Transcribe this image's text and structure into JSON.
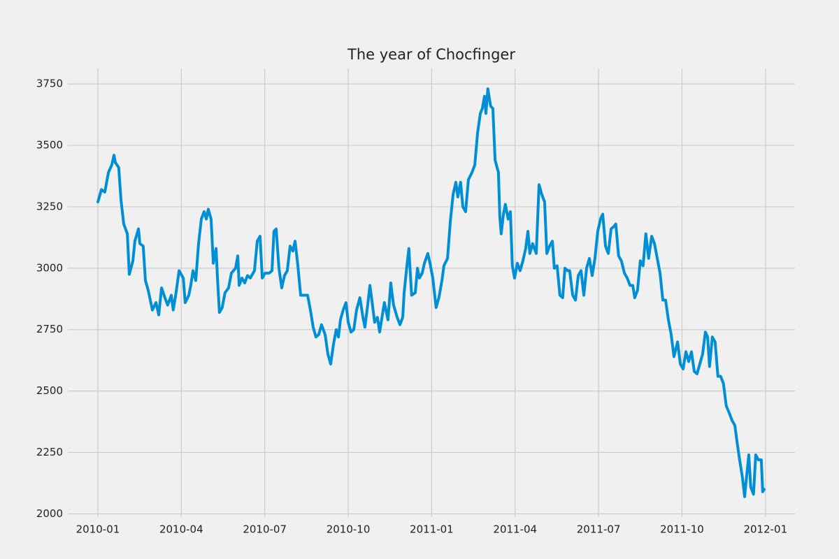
{
  "chart_data": {
    "type": "line",
    "title": "The year of Chocfinger",
    "x": [
      0,
      0.13,
      0.25,
      0.38,
      0.5,
      0.58,
      0.63,
      0.75,
      0.83,
      0.93,
      1.06,
      1.13,
      1.26,
      1.33,
      1.46,
      1.51,
      1.63,
      1.71,
      1.81,
      1.96,
      2.09,
      2.19,
      2.29,
      2.41,
      2.51,
      2.64,
      2.71,
      2.81,
      2.92,
      3.07,
      3.14,
      3.27,
      3.34,
      3.42,
      3.52,
      3.62,
      3.72,
      3.82,
      3.9,
      3.97,
      4.07,
      4.15,
      4.25,
      4.3,
      4.37,
      4.47,
      4.57,
      4.7,
      4.8,
      4.95,
      5.03,
      5.08,
      5.18,
      5.28,
      5.38,
      5.48,
      5.63,
      5.73,
      5.83,
      5.91,
      6.01,
      6.16,
      6.26,
      6.33,
      6.41,
      6.51,
      6.61,
      6.71,
      6.81,
      6.91,
      7.01,
      7.09,
      7.19,
      7.29,
      7.39,
      7.54,
      7.64,
      7.74,
      7.84,
      7.94,
      8.04,
      8.17,
      8.27,
      8.37,
      8.47,
      8.57,
      8.65,
      8.72,
      8.82,
      8.92,
      9.0,
      9.1,
      9.2,
      9.3,
      9.42,
      9.53,
      9.6,
      9.7,
      9.78,
      9.85,
      9.95,
      10.05,
      10.13,
      10.2,
      10.3,
      10.43,
      10.53,
      10.63,
      10.76,
      10.86,
      10.96,
      11.01,
      11.11,
      11.18,
      11.28,
      11.41,
      11.49,
      11.56,
      11.66,
      11.74,
      11.86,
      11.94,
      12.04,
      12.16,
      12.26,
      12.37,
      12.44,
      12.57,
      12.67,
      12.77,
      12.87,
      12.94,
      13.04,
      13.12,
      13.22,
      13.32,
      13.45,
      13.55,
      13.65,
      13.75,
      13.82,
      13.9,
      13.95,
      14.02,
      14.12,
      14.2,
      14.28,
      14.4,
      14.45,
      14.5,
      14.58,
      14.65,
      14.75,
      14.83,
      14.9,
      14.98,
      15.08,
      15.18,
      15.28,
      15.38,
      15.46,
      15.53,
      15.63,
      15.76,
      15.86,
      15.96,
      16.06,
      16.14,
      16.24,
      16.34,
      16.41,
      16.51,
      16.61,
      16.71,
      16.79,
      16.89,
      16.96,
      17.07,
      17.17,
      17.27,
      17.37,
      17.47,
      17.57,
      17.67,
      17.77,
      17.87,
      17.97,
      18.07,
      18.15,
      18.25,
      18.35,
      18.45,
      18.55,
      18.62,
      18.72,
      18.82,
      18.93,
      19.03,
      19.13,
      19.23,
      19.3,
      19.4,
      19.5,
      19.6,
      19.7,
      19.8,
      19.91,
      20.01,
      20.11,
      20.21,
      20.31,
      20.41,
      20.51,
      20.61,
      20.71,
      20.84,
      20.94,
      21.04,
      21.14,
      21.24,
      21.34,
      21.44,
      21.54,
      21.64,
      21.74,
      21.84,
      21.92,
      21.99,
      22.09,
      22.19,
      22.29,
      22.39,
      22.49,
      22.59,
      22.7,
      22.8,
      22.9,
      22.97,
      23.07,
      23.17,
      23.25,
      23.32,
      23.4,
      23.47,
      23.57,
      23.65,
      23.75,
      23.85,
      23.9,
      23.95
    ],
    "series": [
      {
        "color": "#008fd5",
        "values": [
          3270,
          3320,
          3310,
          3390,
          3420,
          3460,
          3430,
          3410,
          3280,
          3180,
          3140,
          2975,
          3030,
          3110,
          3160,
          3100,
          3090,
          2950,
          2910,
          2830,
          2860,
          2810,
          2920,
          2880,
          2850,
          2890,
          2830,
          2900,
          2990,
          2960,
          2860,
          2890,
          2930,
          2990,
          2950,
          3100,
          3200,
          3230,
          3200,
          3240,
          3200,
          3020,
          3080,
          2960,
          2820,
          2840,
          2900,
          2920,
          2980,
          3000,
          3050,
          2930,
          2960,
          2940,
          2970,
          2960,
          2990,
          3110,
          3130,
          2960,
          2980,
          2980,
          2990,
          3150,
          3160,
          3000,
          2920,
          2970,
          2990,
          3090,
          3070,
          3110,
          3010,
          2890,
          2890,
          2890,
          2830,
          2760,
          2720,
          2730,
          2770,
          2730,
          2650,
          2610,
          2690,
          2750,
          2720,
          2790,
          2830,
          2860,
          2780,
          2740,
          2750,
          2830,
          2880,
          2800,
          2760,
          2850,
          2930,
          2870,
          2780,
          2800,
          2740,
          2790,
          2860,
          2790,
          2940,
          2850,
          2800,
          2770,
          2800,
          2900,
          3010,
          3080,
          2890,
          2900,
          3000,
          2960,
          2980,
          3020,
          3060,
          3020,
          2960,
          2840,
          2880,
          2950,
          3010,
          3040,
          3190,
          3300,
          3350,
          3290,
          3350,
          3250,
          3230,
          3360,
          3390,
          3420,
          3550,
          3630,
          3650,
          3700,
          3630,
          3730,
          3660,
          3650,
          3440,
          3390,
          3210,
          3140,
          3220,
          3260,
          3200,
          3230,
          3010,
          2960,
          3020,
          2990,
          3030,
          3080,
          3150,
          3060,
          3100,
          3060,
          3340,
          3300,
          3270,
          3060,
          3090,
          3110,
          3000,
          3010,
          2890,
          2880,
          3000,
          2990,
          2990,
          2890,
          2870,
          2970,
          2990,
          2890,
          3000,
          3040,
          2970,
          3040,
          3150,
          3200,
          3220,
          3090,
          3060,
          3160,
          3170,
          3180,
          3050,
          3030,
          2980,
          2960,
          2930,
          2930,
          2880,
          2910,
          3030,
          3010,
          3140,
          3040,
          3130,
          3100,
          3040,
          2980,
          2870,
          2870,
          2790,
          2730,
          2640,
          2700,
          2610,
          2590,
          2660,
          2620,
          2660,
          2580,
          2570,
          2610,
          2650,
          2740,
          2720,
          2600,
          2720,
          2700,
          2560,
          2560,
          2530,
          2440,
          2410,
          2380,
          2360,
          2300,
          2220,
          2150,
          2070,
          2150,
          2240,
          2110,
          2080,
          2240,
          2220,
          2220,
          2090,
          2100
        ]
      }
    ],
    "xlim": [
      -1.08,
      25.06
    ],
    "xticks": [
      {
        "value": 0,
        "label": "2010-01"
      },
      {
        "value": 3,
        "label": "2010-04"
      },
      {
        "value": 6,
        "label": "2010-07"
      },
      {
        "value": 9,
        "label": "2010-10"
      },
      {
        "value": 12,
        "label": "2011-01"
      },
      {
        "value": 15,
        "label": "2011-04"
      },
      {
        "value": 18,
        "label": "2011-07"
      },
      {
        "value": 21,
        "label": "2011-10"
      },
      {
        "value": 24,
        "label": "2012-01"
      }
    ],
    "ylim": [
      1987,
      3813
    ],
    "yticks": [
      2000,
      2250,
      2500,
      2750,
      3000,
      3250,
      3500,
      3750
    ],
    "grid": true
  }
}
